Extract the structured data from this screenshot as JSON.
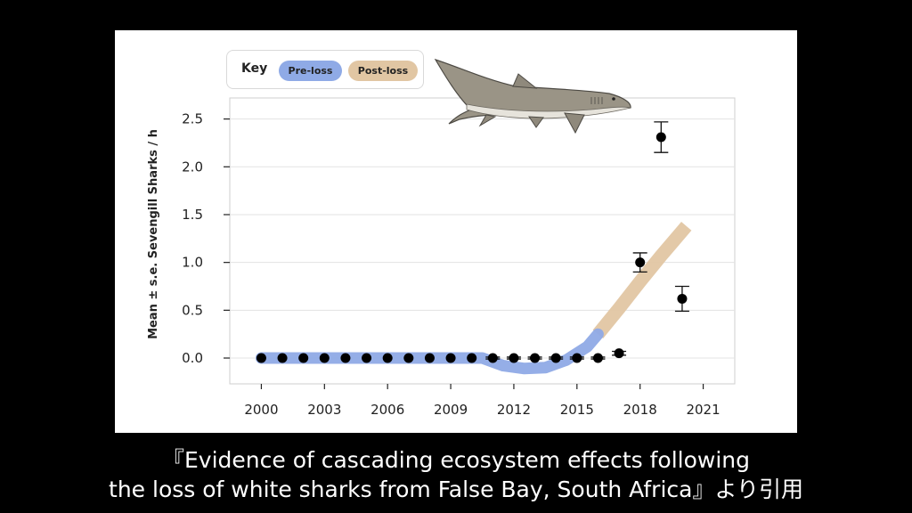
{
  "key": {
    "title": "Key",
    "pre_loss_label": "Pre-loss",
    "post_loss_label": "Post-loss",
    "pre_loss_color": "#8faae6",
    "post_loss_color": "#e1c6a3"
  },
  "caption": {
    "line1": "『Evidence of cascading ecosystem effects following",
    "line2": "the loss of white sharks from False Bay, South Africa』より引用"
  },
  "illustration": {
    "icon": "sevengill-shark-icon"
  },
  "chart_data": {
    "type": "scatter",
    "ylabel": "Mean ± s.e. Sevengill Sharks / h",
    "xlabel": "",
    "xlim": [
      1998.5,
      2022.5
    ],
    "ylim": [
      -0.27,
      2.72
    ],
    "x_ticks": [
      2000,
      2003,
      2006,
      2009,
      2012,
      2015,
      2018,
      2021
    ],
    "x_tick_labels": [
      "2000",
      "2003",
      "2006",
      "2009",
      "2012",
      "2015",
      "2018",
      "2021"
    ],
    "y_ticks": [
      0.0,
      0.5,
      1.0,
      1.5,
      2.0,
      2.5
    ],
    "y_tick_labels": [
      "0.0",
      "0.5",
      "1.0",
      "1.5",
      "2.0",
      "2.5"
    ],
    "grid": true,
    "points": [
      {
        "x": 2000,
        "y": 0.0
      },
      {
        "x": 2001,
        "y": 0.0
      },
      {
        "x": 2002,
        "y": 0.0
      },
      {
        "x": 2003,
        "y": 0.0
      },
      {
        "x": 2004,
        "y": 0.0
      },
      {
        "x": 2005,
        "y": 0.0
      },
      {
        "x": 2006,
        "y": 0.0
      },
      {
        "x": 2007,
        "y": 0.0
      },
      {
        "x": 2008,
        "y": 0.0
      },
      {
        "x": 2009,
        "y": 0.0
      },
      {
        "x": 2010,
        "y": 0.0
      },
      {
        "x": 2011,
        "y": 0.0,
        "err": 0.01
      },
      {
        "x": 2012,
        "y": 0.0,
        "err": 0.01
      },
      {
        "x": 2013,
        "y": 0.0,
        "err": 0.01
      },
      {
        "x": 2014,
        "y": 0.0,
        "err": 0.01
      },
      {
        "x": 2015,
        "y": 0.0,
        "err": 0.01
      },
      {
        "x": 2016,
        "y": 0.0,
        "err": 0.01
      },
      {
        "x": 2017,
        "y": 0.05,
        "err": 0.02
      },
      {
        "x": 2018,
        "y": 1.0,
        "err": 0.1
      },
      {
        "x": 2019,
        "y": 2.31,
        "err": 0.16
      },
      {
        "x": 2020,
        "y": 0.62,
        "err": 0.13
      }
    ],
    "trend_pre_loss": {
      "name": "Pre-loss",
      "x": [
        2000,
        2010.5,
        2011.5,
        2012.5,
        2013.5,
        2014.5,
        2015.5,
        2016
      ],
      "y": [
        0.0,
        0.0,
        -0.08,
        -0.11,
        -0.1,
        -0.02,
        0.12,
        0.25
      ]
    },
    "trend_post_loss": {
      "name": "Post-loss",
      "x": [
        2016,
        2017,
        2018,
        2019,
        2020.2
      ],
      "y": [
        0.25,
        0.52,
        0.8,
        1.07,
        1.38
      ]
    }
  }
}
